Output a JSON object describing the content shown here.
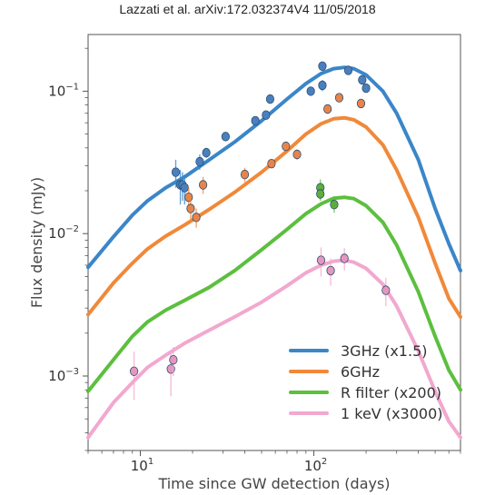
{
  "header": {
    "text": "Lazzati et al.  arXiv:172.032374V4  11/05/2018"
  },
  "chart_data": {
    "type": "scatter",
    "title": "",
    "xlabel": "Time since GW detection (days)",
    "ylabel": "Flux density (mJy)",
    "xscale": "log",
    "yscale": "log",
    "xlim": [
      5,
      700
    ],
    "ylim": [
      0.0003,
      0.25
    ],
    "xticks": [
      {
        "value": 10,
        "base": "10",
        "exp": "1"
      },
      {
        "value": 100,
        "base": "10",
        "exp": "2"
      }
    ],
    "yticks": [
      {
        "value": 0.001,
        "base": "10",
        "exp": "−3"
      },
      {
        "value": 0.01,
        "base": "10",
        "exp": "−2"
      },
      {
        "value": 0.1,
        "base": "10",
        "exp": "−1"
      }
    ],
    "grid": false,
    "legend": {
      "position": "bottom-right"
    },
    "series": [
      {
        "name": "3GHz (x1.5)",
        "color": "#3a86c8",
        "marker_color": "#4a7fbf",
        "model": [
          [
            5,
            0.0058
          ],
          [
            7,
            0.0095
          ],
          [
            9,
            0.0135
          ],
          [
            11,
            0.017
          ],
          [
            14,
            0.021
          ],
          [
            18,
            0.025
          ],
          [
            25,
            0.033
          ],
          [
            35,
            0.044
          ],
          [
            50,
            0.062
          ],
          [
            70,
            0.088
          ],
          [
            90,
            0.113
          ],
          [
            110,
            0.133
          ],
          [
            130,
            0.144
          ],
          [
            150,
            0.147
          ],
          [
            170,
            0.144
          ],
          [
            200,
            0.13
          ],
          [
            250,
            0.1
          ],
          [
            300,
            0.07
          ],
          [
            400,
            0.033
          ],
          [
            500,
            0.015
          ],
          [
            600,
            0.0085
          ],
          [
            700,
            0.0055
          ]
        ],
        "points": [
          [
            16,
            0.027,
            0.006
          ],
          [
            17,
            0.022,
            0.006
          ],
          [
            17.5,
            0.022,
            0.005
          ],
          [
            18,
            0.021,
            0.005
          ],
          [
            22,
            0.032,
            0.004
          ],
          [
            24,
            0.037,
            0.003
          ],
          [
            31,
            0.048,
            0.003
          ],
          [
            46,
            0.062,
            0.004
          ],
          [
            53,
            0.068,
            0.005
          ],
          [
            56,
            0.088,
            0.006
          ],
          [
            96,
            0.1,
            0.005
          ],
          [
            112,
            0.15,
            0.008
          ],
          [
            112,
            0.11,
            0.01
          ],
          [
            158,
            0.14,
            0.008
          ],
          [
            190,
            0.12,
            0.008
          ],
          [
            200,
            0.105,
            0.006
          ]
        ]
      },
      {
        "name": "6GHz",
        "color": "#f0893a",
        "marker_color": "#e8844a",
        "model": [
          [
            5,
            0.0027
          ],
          [
            7,
            0.0045
          ],
          [
            9,
            0.0062
          ],
          [
            11,
            0.0078
          ],
          [
            14,
            0.0096
          ],
          [
            18,
            0.0115
          ],
          [
            25,
            0.0148
          ],
          [
            35,
            0.0195
          ],
          [
            50,
            0.027
          ],
          [
            70,
            0.038
          ],
          [
            90,
            0.05
          ],
          [
            110,
            0.059
          ],
          [
            130,
            0.064
          ],
          [
            150,
            0.065
          ],
          [
            170,
            0.063
          ],
          [
            200,
            0.056
          ],
          [
            250,
            0.042
          ],
          [
            300,
            0.028
          ],
          [
            400,
            0.013
          ],
          [
            500,
            0.0062
          ],
          [
            600,
            0.0035
          ],
          [
            700,
            0.0026
          ]
        ],
        "points": [
          [
            19,
            0.018,
            0.003
          ],
          [
            19.5,
            0.015,
            0.003
          ],
          [
            21,
            0.013,
            0.002
          ],
          [
            23,
            0.022,
            0.003
          ],
          [
            40,
            0.026,
            0.003
          ],
          [
            57,
            0.031,
            0.002
          ],
          [
            69,
            0.041,
            0.003
          ],
          [
            80,
            0.036,
            0.003
          ],
          [
            120,
            0.075,
            0.005
          ],
          [
            140,
            0.09,
            0.004
          ],
          [
            187,
            0.082,
            0.004
          ]
        ]
      },
      {
        "name": "R filter (x200)",
        "color": "#5cbf3e",
        "marker_color": "#5cae3c",
        "model": [
          [
            5,
            0.00078
          ],
          [
            7,
            0.0013
          ],
          [
            9,
            0.0019
          ],
          [
            11,
            0.0024
          ],
          [
            14,
            0.0029
          ],
          [
            18,
            0.0034
          ],
          [
            25,
            0.0042
          ],
          [
            35,
            0.0055
          ],
          [
            50,
            0.0077
          ],
          [
            70,
            0.0107
          ],
          [
            90,
            0.0138
          ],
          [
            110,
            0.0162
          ],
          [
            130,
            0.0177
          ],
          [
            150,
            0.018
          ],
          [
            170,
            0.0176
          ],
          [
            200,
            0.0157
          ],
          [
            250,
            0.012
          ],
          [
            300,
            0.0083
          ],
          [
            400,
            0.0039
          ],
          [
            500,
            0.0019
          ],
          [
            600,
            0.0011
          ],
          [
            700,
            0.0008
          ]
        ],
        "points": [
          [
            109,
            0.021,
            0.003
          ],
          [
            109,
            0.019,
            0.002
          ],
          [
            131,
            0.016,
            0.002
          ]
        ]
      },
      {
        "name": "1 keV (x3000)",
        "color": "#f2a8cf",
        "marker_color": "#e597bf",
        "model": [
          [
            5,
            0.00037
          ],
          [
            7,
            0.00065
          ],
          [
            9,
            0.0009
          ],
          [
            11,
            0.00115
          ],
          [
            14,
            0.0014
          ],
          [
            18,
            0.0017
          ],
          [
            25,
            0.0021
          ],
          [
            35,
            0.0026
          ],
          [
            50,
            0.0033
          ],
          [
            70,
            0.0043
          ],
          [
            90,
            0.0053
          ],
          [
            110,
            0.006
          ],
          [
            130,
            0.0064
          ],
          [
            150,
            0.0065
          ],
          [
            170,
            0.0063
          ],
          [
            200,
            0.0057
          ],
          [
            250,
            0.0044
          ],
          [
            300,
            0.0031
          ],
          [
            400,
            0.0015
          ],
          [
            500,
            0.00078
          ],
          [
            600,
            0.00048
          ],
          [
            700,
            0.00037
          ]
        ],
        "points": [
          [
            9.2,
            0.00108,
            0.0004
          ],
          [
            15,
            0.00112,
            0.0004
          ],
          [
            15.5,
            0.0013,
            0.0003
          ],
          [
            110,
            0.0065,
            0.0015
          ],
          [
            125,
            0.0055,
            0.0012
          ],
          [
            150,
            0.0067,
            0.0012
          ],
          [
            260,
            0.004,
            0.0009
          ]
        ]
      }
    ]
  }
}
